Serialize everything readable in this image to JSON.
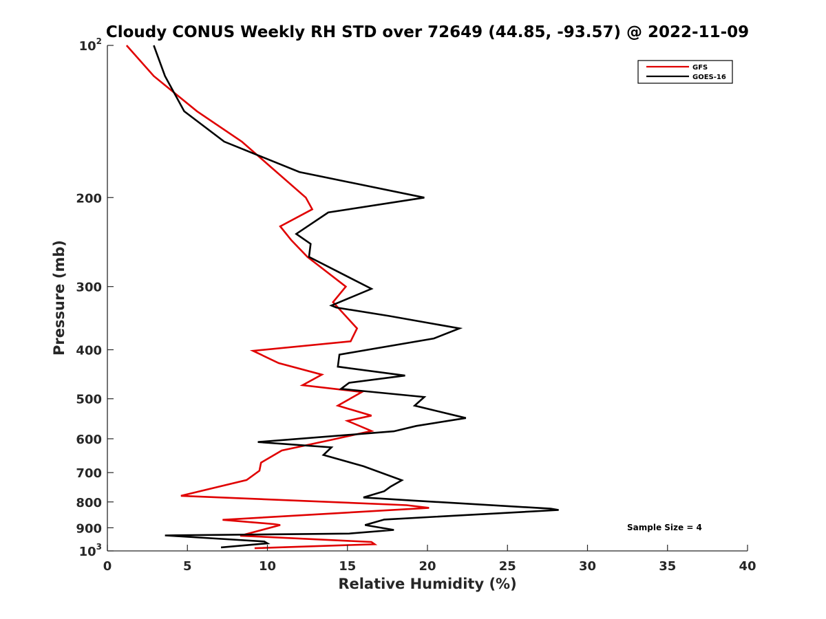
{
  "chart_data": {
    "type": "line",
    "title": "Cloudy CONUS Weekly RH STD over 72649 (44.85, -93.57) @ 2022-11-09",
    "xlabel": "Relative Humidity (%)",
    "ylabel": "Pressure (mb)",
    "xlim": [
      0,
      40
    ],
    "ylim": [
      100,
      1000
    ],
    "y_scale": "log",
    "y_reversed": true,
    "x_ticks": [
      0,
      5,
      10,
      15,
      20,
      25,
      30,
      35,
      40
    ],
    "x_tick_labels": [
      "0",
      "5",
      "10",
      "15",
      "20",
      "25",
      "30",
      "35",
      "40"
    ],
    "y_ticks": [
      100,
      200,
      300,
      400,
      500,
      600,
      700,
      800,
      900,
      1000
    ],
    "y_tick_labels": [
      {
        "base": "10",
        "sup": "2"
      },
      {
        "base": "200"
      },
      {
        "base": "300"
      },
      {
        "base": "400"
      },
      {
        "base": "500"
      },
      {
        "base": "600"
      },
      {
        "base": "700"
      },
      {
        "base": "800"
      },
      {
        "base": "900"
      },
      {
        "base": "10",
        "sup": "3"
      }
    ],
    "grid": false,
    "legend_position": "top-right",
    "annotation": "Sample Size = 4",
    "series": [
      {
        "name": "GFS",
        "color": "#e00000",
        "points": [
          [
            1.2,
            100
          ],
          [
            2.9,
            115
          ],
          [
            5.6,
            135
          ],
          [
            8.4,
            155
          ],
          [
            10.3,
            175
          ],
          [
            12.4,
            200
          ],
          [
            12.8,
            211
          ],
          [
            10.8,
            228
          ],
          [
            11.5,
            243
          ],
          [
            12.5,
            262
          ],
          [
            14.9,
            300
          ],
          [
            14.1,
            322
          ],
          [
            15.6,
            363
          ],
          [
            15.2,
            385
          ],
          [
            9.1,
            402
          ],
          [
            10.7,
            425
          ],
          [
            13.4,
            448
          ],
          [
            12.2,
            470
          ],
          [
            15.9,
            485
          ],
          [
            14.4,
            516
          ],
          [
            16.5,
            540
          ],
          [
            15.0,
            553
          ],
          [
            16.5,
            579
          ],
          [
            14.0,
            603
          ],
          [
            10.9,
            633
          ],
          [
            9.6,
            669
          ],
          [
            9.5,
            694
          ],
          [
            8.7,
            724
          ],
          [
            4.6,
            778
          ],
          [
            18.7,
            812
          ],
          [
            20.1,
            822
          ],
          [
            7.2,
            868
          ],
          [
            10.4,
            885
          ],
          [
            10.8,
            889
          ],
          [
            8.3,
            933
          ],
          [
            16.5,
            960
          ],
          [
            16.7,
            970
          ],
          [
            9.2,
            988
          ]
        ]
      },
      {
        "name": "GOES-16",
        "color": "#000000",
        "points": [
          [
            2.9,
            100
          ],
          [
            3.6,
            115
          ],
          [
            4.8,
            135
          ],
          [
            7.3,
            155
          ],
          [
            12.0,
            178
          ],
          [
            19.8,
            200
          ],
          [
            13.8,
            214
          ],
          [
            11.8,
            236
          ],
          [
            12.7,
            247
          ],
          [
            12.6,
            262
          ],
          [
            16.5,
            303
          ],
          [
            14.0,
            327
          ],
          [
            14.3,
            330
          ],
          [
            17.6,
            343
          ],
          [
            22.0,
            363
          ],
          [
            20.4,
            380
          ],
          [
            14.5,
            409
          ],
          [
            14.4,
            432
          ],
          [
            18.6,
            450
          ],
          [
            15.1,
            465
          ],
          [
            14.6,
            478
          ],
          [
            19.8,
            496
          ],
          [
            19.2,
            516
          ],
          [
            22.4,
            546
          ],
          [
            19.3,
            566
          ],
          [
            17.9,
            580
          ],
          [
            9.4,
            609
          ],
          [
            14.0,
            624
          ],
          [
            13.5,
            646
          ],
          [
            16.0,
            680
          ],
          [
            18.4,
            725
          ],
          [
            17.7,
            746
          ],
          [
            17.3,
            762
          ],
          [
            16.0,
            784
          ],
          [
            19.1,
            795
          ],
          [
            27.7,
            825
          ],
          [
            28.2,
            830
          ],
          [
            17.3,
            867
          ],
          [
            16.1,
            889
          ],
          [
            17.9,
            909
          ],
          [
            15.1,
            924
          ],
          [
            3.6,
            932
          ],
          [
            9.8,
            958
          ],
          [
            10.0,
            966
          ],
          [
            7.1,
            984
          ]
        ]
      }
    ]
  }
}
